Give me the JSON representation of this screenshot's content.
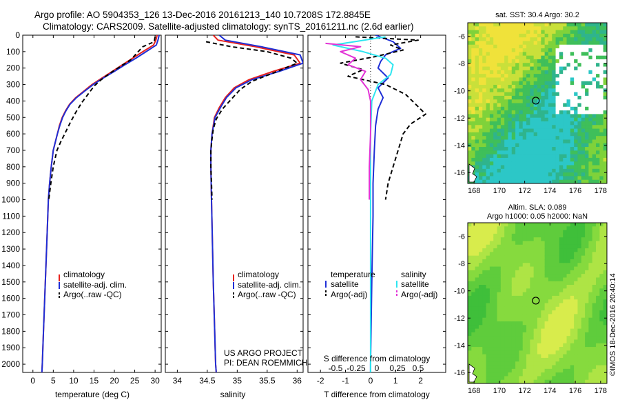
{
  "header": {
    "line1": "Argo profile: AO 5904353_126 13-Dec-2016 20161213_140 10.7208S 172.8845E",
    "line2": "Climatology: CARS2009. Satellite-adjusted climatology: synTS_20161211.nc (2.6d earlier)"
  },
  "colors": {
    "climatology": "#e8221e",
    "satellite_temp": "#1f2fd6",
    "argo_temp": "#000000",
    "satellite_sal": "#2ee6f0",
    "argo_sal": "#e233d6"
  },
  "chart_data": [
    {
      "type": "line",
      "name": "temperature-profile",
      "xlabel": "temperature (deg C)",
      "ylabel": "",
      "xlim": [
        -2.5,
        31.5
      ],
      "ylim": [
        2050,
        0
      ],
      "xticks": [
        "0",
        "5",
        "10",
        "15",
        "20",
        "25",
        "30"
      ],
      "yticks": [
        "0",
        "100",
        "200",
        "300",
        "400",
        "500",
        "600",
        "700",
        "800",
        "900",
        "1000",
        "1100",
        "1200",
        "1300",
        "1400",
        "1500",
        "1600",
        "1700",
        "1800",
        "1900",
        "2000"
      ],
      "legend": [
        "climatology",
        "satellite-adj. clim.",
        "Argo(..raw -QC)"
      ],
      "series": [
        {
          "name": "climatology",
          "style": "solid",
          "color": "#e8221e",
          "points": [
            [
              30.5,
              0
            ],
            [
              30.2,
              30
            ],
            [
              29.6,
              60
            ],
            [
              27,
              100
            ],
            [
              24.5,
              140
            ],
            [
              22,
              180
            ],
            [
              19.5,
              220
            ],
            [
              17,
              260
            ],
            [
              14.5,
              300
            ],
            [
              12.5,
              340
            ],
            [
              10.5,
              380
            ],
            [
              9,
              420
            ],
            [
              8,
              460
            ],
            [
              7.2,
              500
            ],
            [
              6.5,
              550
            ],
            [
              6,
              600
            ],
            [
              5.5,
              650
            ],
            [
              5,
              700
            ],
            [
              4.5,
              800
            ],
            [
              4.1,
              900
            ],
            [
              3.8,
              1000
            ],
            [
              3.5,
              1200
            ],
            [
              3.2,
              1400
            ],
            [
              2.9,
              1600
            ],
            [
              2.6,
              1800
            ],
            [
              2.3,
              2000
            ],
            [
              2.2,
              2050
            ]
          ]
        },
        {
          "name": "satellite-adj. clim.",
          "style": "solid",
          "color": "#1f2fd6",
          "points": [
            [
              31,
              0
            ],
            [
              30.7,
              30
            ],
            [
              30.3,
              60
            ],
            [
              27.8,
              100
            ],
            [
              25.3,
              140
            ],
            [
              22.6,
              180
            ],
            [
              20,
              220
            ],
            [
              17.3,
              260
            ],
            [
              14.8,
              300
            ],
            [
              12.7,
              340
            ],
            [
              10.7,
              380
            ],
            [
              9.1,
              420
            ],
            [
              8.1,
              460
            ],
            [
              7.3,
              500
            ],
            [
              6.6,
              550
            ],
            [
              6,
              600
            ],
            [
              5.5,
              650
            ],
            [
              5,
              700
            ],
            [
              4.5,
              800
            ],
            [
              4.1,
              900
            ],
            [
              3.8,
              1000
            ],
            [
              3.5,
              1200
            ],
            [
              3.2,
              1400
            ],
            [
              2.9,
              1600
            ],
            [
              2.6,
              1800
            ],
            [
              2.3,
              2000
            ],
            [
              2.2,
              2050
            ]
          ]
        },
        {
          "name": "Argo(..raw -QC)",
          "style": "dashed",
          "color": "#000000",
          "points": [
            [
              30,
              10
            ],
            [
              29.8,
              40
            ],
            [
              27,
              70
            ],
            [
              25.5,
              110
            ],
            [
              24,
              150
            ],
            [
              21.5,
              190
            ],
            [
              19,
              230
            ],
            [
              16.8,
              270
            ],
            [
              15,
              310
            ],
            [
              13.5,
              360
            ],
            [
              12,
              410
            ],
            [
              10.5,
              470
            ],
            [
              9.2,
              530
            ],
            [
              8,
              590
            ],
            [
              6.8,
              650
            ],
            [
              5.9,
              700
            ],
            [
              5,
              800
            ],
            [
              4.4,
              900
            ],
            [
              3.9,
              1000
            ]
          ]
        }
      ]
    },
    {
      "type": "line",
      "name": "salinity-profile",
      "xlabel": "salinity",
      "ylabel": "",
      "xlim": [
        33.8,
        36.1
      ],
      "ylim": [
        2050,
        0
      ],
      "xticks": [
        "34",
        "34.5",
        "35",
        "35.5",
        "36"
      ],
      "legend": [
        "climatology",
        "satellite-adj. clim.",
        "Argo(..raw -QC)"
      ],
      "series": [
        {
          "name": "climatology",
          "style": "solid",
          "color": "#e8221e",
          "points": [
            [
              34.6,
              0
            ],
            [
              34.68,
              30
            ],
            [
              35.3,
              70
            ],
            [
              35.95,
              120
            ],
            [
              36.05,
              170
            ],
            [
              35.6,
              220
            ],
            [
              35.2,
              270
            ],
            [
              34.95,
              320
            ],
            [
              34.8,
              380
            ],
            [
              34.7,
              440
            ],
            [
              34.62,
              500
            ],
            [
              34.58,
              600
            ],
            [
              34.56,
              700
            ],
            [
              34.56,
              800
            ],
            [
              34.57,
              1000
            ],
            [
              34.6,
              1500
            ],
            [
              34.64,
              2000
            ],
            [
              34.65,
              2050
            ]
          ]
        },
        {
          "name": "satellite-adj. clim.",
          "style": "solid",
          "color": "#1f2fd6",
          "points": [
            [
              34.7,
              0
            ],
            [
              34.8,
              30
            ],
            [
              35.4,
              70
            ],
            [
              36.05,
              120
            ],
            [
              36.1,
              170
            ],
            [
              35.7,
              220
            ],
            [
              35.25,
              270
            ],
            [
              34.98,
              320
            ],
            [
              34.82,
              380
            ],
            [
              34.72,
              440
            ],
            [
              34.63,
              500
            ],
            [
              34.58,
              600
            ],
            [
              34.56,
              700
            ],
            [
              34.56,
              800
            ],
            [
              34.57,
              1000
            ],
            [
              34.6,
              1500
            ],
            [
              34.64,
              2000
            ],
            [
              34.65,
              2050
            ]
          ]
        },
        {
          "name": "Argo(..raw -QC)",
          "style": "dashed",
          "color": "#000000",
          "points": [
            [
              34.48,
              40
            ],
            [
              34.9,
              70
            ],
            [
              35.5,
              100
            ],
            [
              35.9,
              140
            ],
            [
              36,
              170
            ],
            [
              35.6,
              230
            ],
            [
              35.25,
              280
            ],
            [
              35.05,
              330
            ],
            [
              34.9,
              390
            ],
            [
              34.75,
              450
            ],
            [
              34.65,
              510
            ],
            [
              34.6,
              570
            ],
            [
              34.58,
              630
            ],
            [
              34.56,
              700
            ],
            [
              34.56,
              800
            ],
            [
              34.57,
              900
            ],
            [
              34.58,
              1000
            ]
          ]
        }
      ]
    },
    {
      "type": "line",
      "name": "difference-profile",
      "xlabel": "T difference from climatology",
      "xlabel_top": "S difference from climatology",
      "xlim": [
        -2.5,
        3
      ],
      "ylim": [
        2050,
        0
      ],
      "xticks": [
        "-2",
        "-1",
        "0",
        "1",
        "2"
      ],
      "xticks_top": [
        "-0.5",
        "-0.25",
        "0",
        "0.25",
        "0.5"
      ],
      "legend_temperature": {
        "title": "temperature",
        "items": [
          "satellite",
          "Argo(-adj)"
        ]
      },
      "legend_salinity": {
        "title": "salinity",
        "items": [
          "satellite",
          "Argo(-adj)"
        ]
      },
      "series": [
        {
          "name": "satellite",
          "group": "temperature",
          "style": "solid",
          "color": "#1f2fd6",
          "points": [
            [
              0.2,
              0
            ],
            [
              0.9,
              40
            ],
            [
              1.2,
              80
            ],
            [
              0.6,
              120
            ],
            [
              0.4,
              160
            ],
            [
              0.3,
              200
            ],
            [
              0.7,
              260
            ],
            [
              0.3,
              320
            ],
            [
              0.5,
              380
            ],
            [
              0.3,
              450
            ],
            [
              0.2,
              550
            ],
            [
              0.15,
              700
            ],
            [
              0.1,
              900
            ],
            [
              0.1,
              1100
            ],
            [
              0.05,
              1500
            ],
            [
              0,
              2000
            ],
            [
              0,
              2050
            ]
          ]
        },
        {
          "name": "Argo(-adj)",
          "group": "temperature",
          "style": "dashed",
          "color": "#000000",
          "points": [
            [
              -0.6,
              10
            ],
            [
              1.9,
              30
            ],
            [
              0.8,
              60
            ],
            [
              1.3,
              90
            ],
            [
              0.2,
              130
            ],
            [
              -1.2,
              170
            ],
            [
              -0.3,
              210
            ],
            [
              -0.9,
              250
            ],
            [
              0.6,
              300
            ],
            [
              1.4,
              360
            ],
            [
              1.8,
              420
            ],
            [
              2.2,
              480
            ],
            [
              1.6,
              540
            ],
            [
              1.3,
              600
            ],
            [
              1.1,
              700
            ],
            [
              0.9,
              800
            ],
            [
              0.7,
              900
            ],
            [
              0.6,
              1000
            ]
          ]
        },
        {
          "name": "satellite",
          "group": "salinity",
          "style": "solid",
          "color": "#2ee6f0",
          "points": [
            [
              0.6,
              10
            ],
            [
              -1.5,
              60
            ],
            [
              -0.3,
              100
            ],
            [
              0.6,
              140
            ],
            [
              0.9,
              180
            ],
            [
              0.8,
              240
            ],
            [
              0.3,
              300
            ],
            [
              0.05,
              400
            ],
            [
              0,
              600
            ],
            [
              0,
              900
            ],
            [
              0,
              1200
            ],
            [
              0,
              1600
            ],
            [
              0,
              2050
            ]
          ]
        },
        {
          "name": "Argo(-adj)",
          "group": "salinity",
          "style": "solid",
          "color": "#e233d6",
          "points": [
            [
              -1.8,
              50
            ],
            [
              -0.4,
              70
            ],
            [
              -1.2,
              100
            ],
            [
              -0.6,
              140
            ],
            [
              -0.9,
              180
            ],
            [
              -0.2,
              220
            ],
            [
              -0.4,
              270
            ],
            [
              -0.1,
              330
            ],
            [
              0,
              400
            ],
            [
              0,
              600
            ],
            [
              -0.05,
              800
            ],
            [
              -0.05,
              1000
            ]
          ]
        }
      ]
    },
    {
      "type": "heatmap",
      "name": "sst-map",
      "title": "sat. SST: 30.4  Argo: 30.2",
      "xticks": [
        "168",
        "170",
        "172",
        "174",
        "176",
        "178"
      ],
      "yticks": [
        "-6",
        "-8",
        "-10",
        "-12",
        "-14",
        "-16"
      ],
      "xlim": [
        167.5,
        178.5
      ],
      "ylim": [
        -16.8,
        -5
      ]
    },
    {
      "type": "heatmap",
      "name": "sla-map",
      "title_line1": "Altim. SLA: 0.089",
      "title_line2": "Argo h1000: 0.05 h2000: NaN",
      "xticks": [
        "168",
        "170",
        "172",
        "174",
        "176",
        "178"
      ],
      "yticks": [
        "-6",
        "-8",
        "-10",
        "-12",
        "-14",
        "-16"
      ],
      "xlim": [
        167.5,
        178.5
      ],
      "ylim": [
        -16.8,
        -5
      ]
    }
  ],
  "annotations": {
    "project_line1": "US ARGO PROJECT",
    "project_line2": "PI: DEAN ROEMMICH",
    "credit": "©IMOS 18-Dec-2016 20:40:14",
    "float_position": {
      "lon": 172.88,
      "lat": -10.72
    }
  }
}
